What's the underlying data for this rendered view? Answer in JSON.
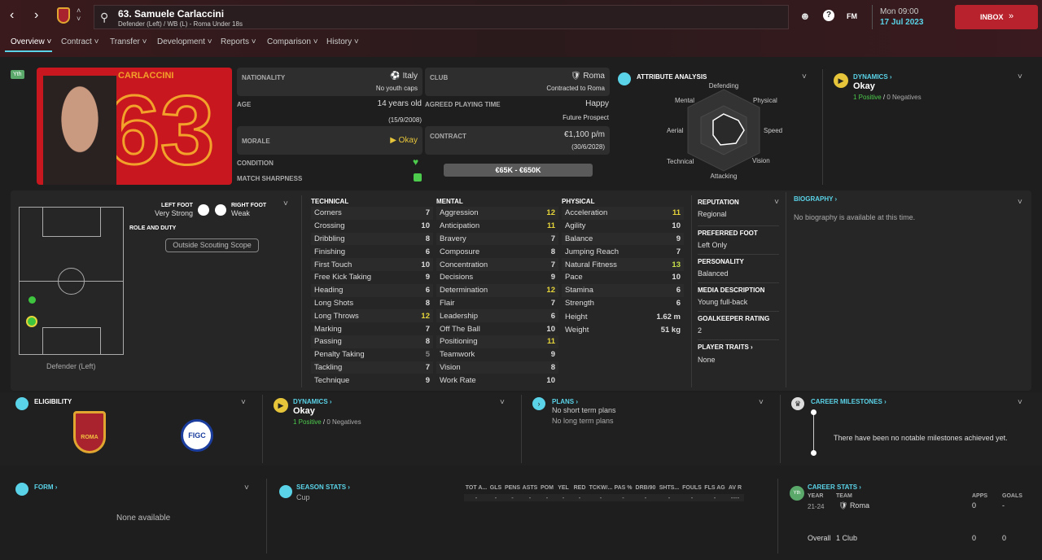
{
  "header": {
    "player_title": "63. Samuele Carlaccini",
    "subtitle": "Defender (Left) / WB (L) - Roma Under 18s",
    "fm_label": "FM",
    "day": "Mon 09:00",
    "date": "17 Jul 2023",
    "inbox": "INBOX"
  },
  "tabs": [
    "Overview",
    "Contract",
    "Transfer",
    "Development",
    "Reports",
    "Comparison",
    "History"
  ],
  "profile": {
    "youth_badge": "Yth",
    "shirt_name": "CARLACCINI",
    "shirt_number": "63"
  },
  "info": {
    "nationality_label": "NATIONALITY",
    "nationality": "Italy",
    "youth_caps": "No youth caps",
    "club_label": "CLUB",
    "club": "Roma",
    "contracted": "Contracted to Roma",
    "age_label": "AGE",
    "age": "14 years old",
    "dob": "(15/9/2008)",
    "apt_label": "AGREED PLAYING TIME",
    "apt": "Happy",
    "apt_sub": "Future Prospect",
    "morale_label": "MORALE",
    "morale": "Okay",
    "contract_label": "CONTRACT",
    "wage": "€1,100 p/m",
    "expiry": "(30/6/2028)",
    "condition_label": "CONDITION",
    "sharpness_label": "MATCH SHARPNESS",
    "value_range": "€65K - €650K"
  },
  "analysis": {
    "title": "ATTRIBUTE ANALYSIS",
    "labels": [
      "Defending",
      "Physical",
      "Speed",
      "Vision",
      "Attacking",
      "Technical",
      "Aerial",
      "Mental"
    ]
  },
  "dynamics_top": {
    "title": "DYNAMICS",
    "status": "Okay",
    "positives": "1 Positive",
    "negatives": "0 Negatives"
  },
  "pitch": {
    "left_foot_label": "LEFT FOOT",
    "left_foot": "Very Strong",
    "right_foot_label": "RIGHT FOOT",
    "right_foot": "Weak",
    "role_label": "ROLE AND DUTY",
    "scope_button": "Outside Scouting Scope",
    "position": "Defender (Left)"
  },
  "attributes": {
    "technical_title": "TECHNICAL",
    "mental_title": "MENTAL",
    "physical_title": "PHYSICAL",
    "technical": [
      [
        "Corners",
        7
      ],
      [
        "Crossing",
        10
      ],
      [
        "Dribbling",
        8
      ],
      [
        "Finishing",
        6
      ],
      [
        "First Touch",
        10
      ],
      [
        "Free Kick Taking",
        9
      ],
      [
        "Heading",
        6
      ],
      [
        "Long Shots",
        8
      ],
      [
        "Long Throws",
        12
      ],
      [
        "Marking",
        7
      ],
      [
        "Passing",
        8
      ],
      [
        "Penalty Taking",
        5
      ],
      [
        "Tackling",
        7
      ],
      [
        "Technique",
        9
      ]
    ],
    "mental": [
      [
        "Aggression",
        12
      ],
      [
        "Anticipation",
        11
      ],
      [
        "Bravery",
        7
      ],
      [
        "Composure",
        8
      ],
      [
        "Concentration",
        7
      ],
      [
        "Decisions",
        9
      ],
      [
        "Determination",
        12
      ],
      [
        "Flair",
        7
      ],
      [
        "Leadership",
        6
      ],
      [
        "Off The Ball",
        10
      ],
      [
        "Positioning",
        11
      ],
      [
        "Teamwork",
        9
      ],
      [
        "Vision",
        8
      ],
      [
        "Work Rate",
        10
      ]
    ],
    "physical": [
      [
        "Acceleration",
        11
      ],
      [
        "Agility",
        10
      ],
      [
        "Balance",
        9
      ],
      [
        "Jumping Reach",
        7
      ],
      [
        "Natural Fitness",
        13
      ],
      [
        "Pace",
        10
      ],
      [
        "Stamina",
        6
      ],
      [
        "Strength",
        6
      ]
    ],
    "height_label": "Height",
    "height": "1.62 m",
    "weight_label": "Weight",
    "weight": "51 kg"
  },
  "side": {
    "reputation_label": "REPUTATION",
    "reputation": "Regional",
    "foot_label": "PREFERRED FOOT",
    "foot": "Left Only",
    "personality_label": "PERSONALITY",
    "personality": "Balanced",
    "media_label": "MEDIA DESCRIPTION",
    "media": "Young full-back",
    "gk_label": "GOALKEEPER RATING",
    "gk": "2",
    "traits_label": "PLAYER TRAITS",
    "traits": "None"
  },
  "biography": {
    "title": "BIOGRAPHY",
    "text": "No biography is available at this time."
  },
  "eligibility": {
    "title": "ELIGIBILITY",
    "club_logo_text": "ROMA",
    "fed_logo_text": "FIGC"
  },
  "dynamics_bottom": {
    "title": "DYNAMICS",
    "status": "Okay",
    "positives": "1 Positive",
    "negatives": "0 Negatives"
  },
  "plans": {
    "title": "PLANS",
    "short": "No short term plans",
    "long": "No long term plans"
  },
  "milestones": {
    "title": "CAREER MILESTONES",
    "text": "There have been no notable milestones achieved yet."
  },
  "form": {
    "title": "FORM",
    "text": "None available"
  },
  "season_stats": {
    "title": "SEASON STATS",
    "columns": [
      "TOT A...",
      "GLS",
      "PENS",
      "ASTS",
      "POM",
      "YEL",
      "RED",
      "TCKW/...",
      "PAS %",
      "DRB/90",
      "SHTS...",
      "FOULS",
      "FLS AG",
      "AV R"
    ],
    "row_label": "Cup",
    "values": [
      "-",
      "-",
      "-",
      "-",
      "-",
      "-",
      "-",
      "-",
      "-",
      "-",
      "-",
      "-",
      "-",
      "----"
    ]
  },
  "career_stats": {
    "title": "CAREER STATS",
    "badge": "Yth",
    "headers": [
      "YEAR",
      "TEAM",
      "APPS",
      "GOALS"
    ],
    "row": [
      "21-24",
      "Roma",
      "0",
      "-"
    ],
    "total": [
      "Overall",
      "1 Club",
      "0",
      "0"
    ]
  },
  "colors": {
    "accent": "#5ad3e8",
    "inbox": "#b8222c",
    "highlight": "#e6d53a",
    "positive": "#4ccb4c"
  }
}
